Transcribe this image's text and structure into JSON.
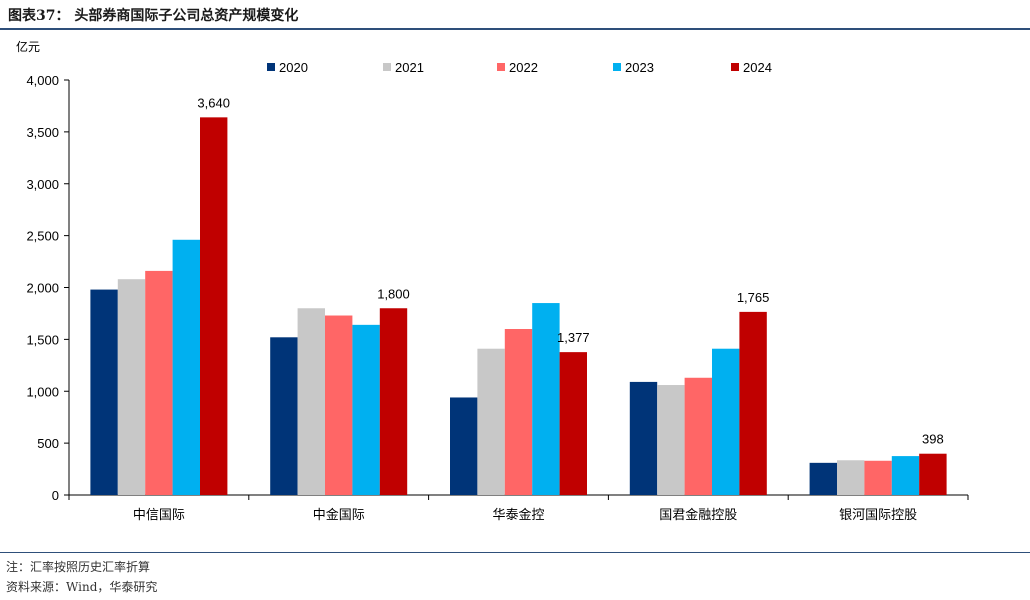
{
  "title": "图表37：  头部券商国际子公司总资产规模变化",
  "notes": {
    "note": "注：汇率按照历史汇率折算",
    "source": "资料来源：Wind，华泰研究"
  },
  "colors": {
    "2020": "#003478",
    "2021": "#c8c8c8",
    "2022": "#ff6666",
    "2023": "#00b0f0",
    "2024": "#c00000",
    "axis": "#000000",
    "rule": "#2e4f7a"
  },
  "chart_data": {
    "type": "bar",
    "title": "头部券商国际子公司总资产规模变化",
    "ylabel": "亿元",
    "xlabel": "",
    "ylim": [
      0,
      4000
    ],
    "yticks": [
      0,
      500,
      1000,
      1500,
      2000,
      2500,
      3000,
      3500,
      4000
    ],
    "ytick_labels": [
      "0",
      "500",
      "1,000",
      "1,500",
      "2,000",
      "2,500",
      "3,000",
      "3,500",
      "4,000"
    ],
    "categories": [
      "中信国际",
      "中金国际",
      "华泰金控",
      "国君金融控股",
      "银河国际控股"
    ],
    "series": [
      {
        "name": "2020",
        "values": [
          1980,
          1520,
          940,
          1090,
          310
        ]
      },
      {
        "name": "2021",
        "values": [
          2080,
          1800,
          1410,
          1060,
          335
        ]
      },
      {
        "name": "2022",
        "values": [
          2160,
          1730,
          1600,
          1130,
          330
        ]
      },
      {
        "name": "2023",
        "values": [
          2460,
          1640,
          1850,
          1410,
          375
        ]
      },
      {
        "name": "2024",
        "values": [
          3640,
          1800,
          1377,
          1765,
          398
        ]
      }
    ],
    "data_labels": [
      {
        "series": "2024",
        "category": "中信国际",
        "text": "3,640"
      },
      {
        "series": "2024",
        "category": "中金国际",
        "text": "1,800"
      },
      {
        "series": "2024",
        "category": "华泰金控",
        "text": "1,377"
      },
      {
        "series": "2024",
        "category": "国君金融控股",
        "text": "1,765"
      },
      {
        "series": "2024",
        "category": "银河国际控股",
        "text": "398"
      }
    ],
    "legend": {
      "position": "top",
      "entries": [
        "2020",
        "2021",
        "2022",
        "2023",
        "2024"
      ]
    },
    "grid": false
  }
}
